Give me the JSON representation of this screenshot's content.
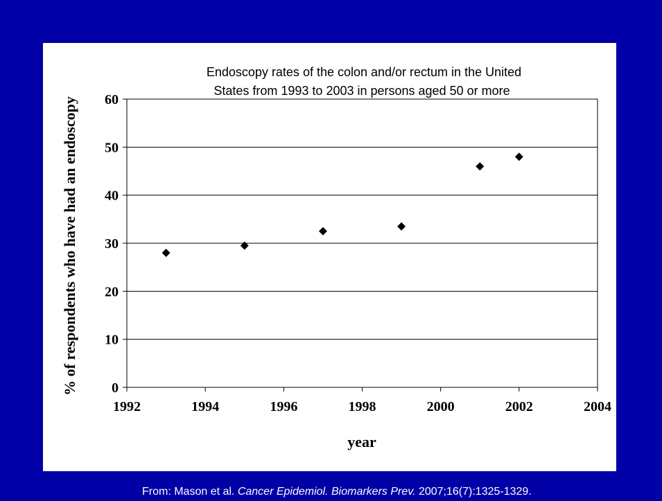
{
  "colors": {
    "background": "#0000a6",
    "panel": "#ffffff",
    "text": "#000000",
    "marker": "#000000",
    "citation": "#ffffff"
  },
  "chart_data": {
    "type": "scatter",
    "title_line1": "Endoscopy rates of the colon and/or rectum in the United",
    "title_line2": "States from 1993 to 2003 in persons aged 50 or more",
    "xlabel": "year",
    "ylabel": "% of respondents who have had an endoscopy",
    "xlim": [
      1992,
      2004
    ],
    "ylim": [
      0,
      60
    ],
    "x_ticks": [
      1992,
      1994,
      1996,
      1998,
      2000,
      2002,
      2004
    ],
    "y_ticks": [
      0,
      10,
      20,
      30,
      40,
      50,
      60
    ],
    "grid": "horizontal",
    "marker": "diamond",
    "points": [
      {
        "x": 1993,
        "y": 28
      },
      {
        "x": 1995,
        "y": 29.5
      },
      {
        "x": 1997,
        "y": 32.5
      },
      {
        "x": 1999,
        "y": 33.5
      },
      {
        "x": 2001,
        "y": 46
      },
      {
        "x": 2002,
        "y": 48
      }
    ]
  },
  "citation": {
    "prefix": "From: Mason et al. ",
    "journal": "Cancer Epidemiol. Biomarkers Prev.",
    "suffix": " 2007;16(7):1325-1329."
  }
}
